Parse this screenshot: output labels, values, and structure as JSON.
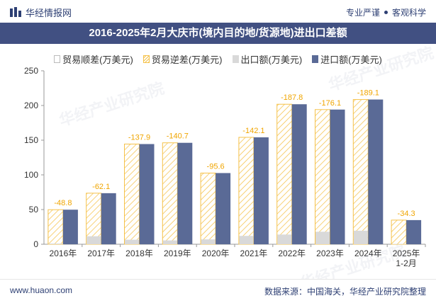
{
  "header": {
    "brand": "华经情报网",
    "right_left": "专业严谨",
    "right_right": "客观科学"
  },
  "footer": {
    "url": "www.huaon.com",
    "source": "数据来源：中国海关，华经产业研究院整理"
  },
  "watermark": "华经产业研究院",
  "colors": {
    "header_bar": "#415082",
    "import": "#5a6a96",
    "export": "#d9d9d9",
    "deficit_hatch": "#f5c24a",
    "label": "#f0a500"
  },
  "chart_data": {
    "type": "bar",
    "title": "2016-2025年2月大庆市(境内目的地/货源地)进出口差额",
    "legend": [
      "贸易顺差(万美元)",
      "贸易逆差(万美元)",
      "出口额(万美元)",
      "进口额(万美元)"
    ],
    "legend_placement": "top",
    "categories": [
      "2016年",
      "2017年",
      "2018年",
      "2019年",
      "2020年",
      "2021年",
      "2022年",
      "2023年",
      "2024年",
      "2025年\n1-2月"
    ],
    "series": [
      {
        "name": "出口额(万美元)",
        "values": [
          1.0,
          11.5,
          6.5,
          5.5,
          7.0,
          12.0,
          14.0,
          18.0,
          19.5,
          0.5
        ]
      },
      {
        "name": "进口额(万美元)",
        "values": [
          49.8,
          73.6,
          144.4,
          146.2,
          102.6,
          154.1,
          201.8,
          194.1,
          208.6,
          34.8
        ]
      },
      {
        "name": "贸易逆差(万美元)",
        "values": [
          -48.8,
          -62.1,
          -137.9,
          -140.7,
          -95.6,
          -142.1,
          -187.8,
          -176.1,
          -189.1,
          -34.3
        ]
      }
    ],
    "deficit_labels": [
      "-48.8",
      "-62.1",
      "-137.9",
      "-140.7",
      "-95.6",
      "-142.1",
      "-187.8",
      "-176.1",
      "-189.1",
      "-34.3"
    ],
    "yticks": [
      "0",
      "50",
      "100",
      "150",
      "200",
      "250"
    ],
    "ylim": [
      0,
      250
    ],
    "grid": false
  }
}
